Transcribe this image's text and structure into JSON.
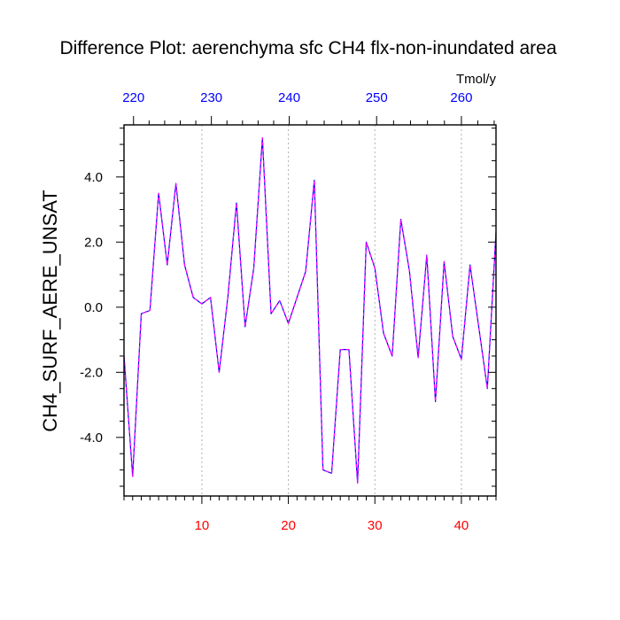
{
  "colors": {
    "bottom_axis": "#ff0000",
    "top_axis": "#0000ff",
    "line_outer": "#0000ff",
    "line_inner": "#ff00ff",
    "grid": "#b0b0b0",
    "frame": "#000000"
  },
  "chart_data": {
    "type": "line",
    "title": "Difference Plot: aerenchyma sfc CH4 flx-non-inundated area",
    "ylabel": "CH4_SURF_AERE_UNSAT",
    "xlim": [
      1,
      44
    ],
    "ylim": [
      -5.8,
      5.6
    ],
    "line_style": "dashed",
    "grid": "vertical dotted at bottom-axis ticks",
    "bottom_axis": {
      "ticks": [
        10,
        20,
        30,
        40
      ],
      "tick_labels": [
        "10",
        "20",
        "30",
        "40"
      ]
    },
    "top_axis": {
      "title": "Tmol/y",
      "tick_labels": [
        "220",
        "230",
        "240",
        "250",
        "260"
      ],
      "tick_positions": [
        2.1,
        11.1,
        20.1,
        30.2,
        40.0
      ]
    },
    "y_ticks": [
      -4.0,
      -2.0,
      0.0,
      2.0,
      4.0
    ],
    "y_tick_labels": [
      "-4.0",
      "-2.0",
      "0.0",
      "2.0",
      "4.0"
    ],
    "series": [
      {
        "x": [
          1,
          2,
          3,
          4,
          5,
          6,
          7,
          8,
          9,
          10,
          11,
          12,
          13,
          14,
          15,
          16,
          17,
          18,
          19,
          20,
          21,
          22,
          23,
          24,
          25,
          26,
          27,
          28,
          29,
          30,
          31,
          32,
          33,
          34,
          35,
          36,
          37,
          38,
          39,
          40,
          41,
          42,
          43,
          44
        ],
        "values": [
          -1.5,
          -5.2,
          -0.2,
          -0.1,
          3.5,
          1.3,
          3.8,
          1.3,
          0.3,
          0.1,
          0.3,
          -2.0,
          0.3,
          3.2,
          -0.6,
          1.2,
          5.2,
          -0.2,
          0.2,
          -0.5,
          0.3,
          1.1,
          3.9,
          -5.0,
          -5.1,
          -1.3,
          -1.3,
          -5.4,
          2.0,
          1.2,
          -0.8,
          -1.5,
          2.7,
          1.1,
          -1.55,
          1.6,
          -2.9,
          1.4,
          -0.9,
          -1.6,
          1.3,
          -0.6,
          -2.5,
          2.3
        ]
      }
    ]
  }
}
